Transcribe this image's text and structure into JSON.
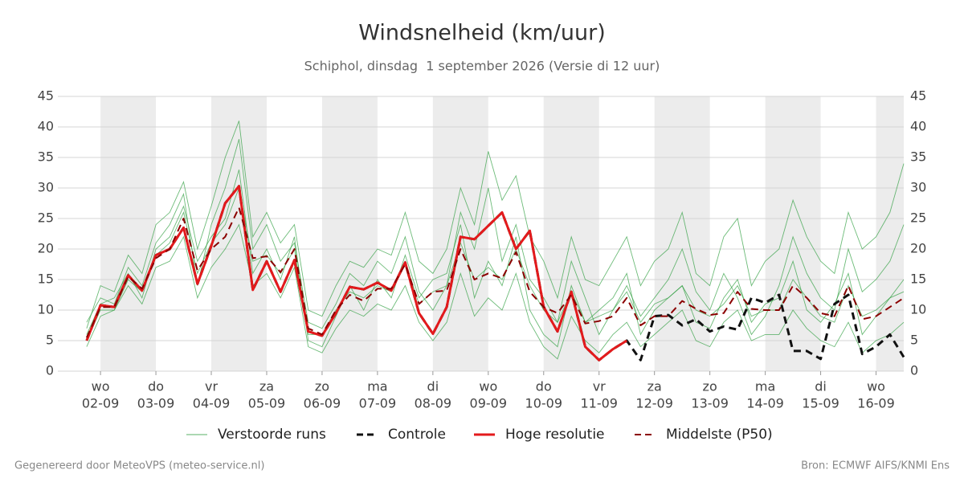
{
  "chart_data": {
    "type": "line",
    "title": "Windsnelheid (km/uur)",
    "subtitle": "Schiphol, dinsdag  1 september 2026 (Versie di 12 uur)",
    "footer_left": "Gegenereerd door MeteoVPS (meteo-service.nl)",
    "footer_right": "Bron: ECMWF AIFS/KNMI Ens",
    "x": [
      -0.25,
      0,
      0.25,
      0.5,
      0.75,
      1,
      1.25,
      1.5,
      1.75,
      2,
      2.25,
      2.5,
      2.75,
      3,
      3.25,
      3.5,
      3.75,
      4,
      4.25,
      4.5,
      4.75,
      5,
      5.25,
      5.5,
      5.75,
      6,
      6.25,
      6.5,
      6.75,
      7,
      7.25,
      7.5,
      7.75,
      8,
      8.25,
      8.5,
      8.75,
      9,
      9.25,
      9.5,
      9.75,
      10,
      10.25,
      10.5,
      10.75,
      11,
      11.25,
      11.5,
      11.75,
      12,
      12.25,
      12.5,
      12.75,
      13,
      13.25,
      13.5,
      13.75,
      14,
      14.25,
      14.5
    ],
    "xlim": [
      -0.77,
      14.5
    ],
    "xticks": [
      {
        "value": 0,
        "label": "02-09",
        "weekday": "wo"
      },
      {
        "value": 1,
        "label": "03-09",
        "weekday": "do"
      },
      {
        "value": 2,
        "label": "04-09",
        "weekday": "vr"
      },
      {
        "value": 3,
        "label": "05-09",
        "weekday": "za"
      },
      {
        "value": 4,
        "label": "06-09",
        "weekday": "zo"
      },
      {
        "value": 5,
        "label": "07-09",
        "weekday": "ma"
      },
      {
        "value": 6,
        "label": "08-09",
        "weekday": "di"
      },
      {
        "value": 7,
        "label": "09-09",
        "weekday": "wo"
      },
      {
        "value": 8,
        "label": "10-09",
        "weekday": "do"
      },
      {
        "value": 9,
        "label": "11-09",
        "weekday": "vr"
      },
      {
        "value": 10,
        "label": "12-09",
        "weekday": "za"
      },
      {
        "value": 11,
        "label": "13-09",
        "weekday": "zo"
      },
      {
        "value": 12,
        "label": "14-09",
        "weekday": "ma"
      },
      {
        "value": 13,
        "label": "15-09",
        "weekday": "di"
      },
      {
        "value": 14,
        "label": "16-09",
        "weekday": "wo"
      }
    ],
    "ylim": [
      0,
      45
    ],
    "yticks": [
      0,
      5,
      10,
      15,
      20,
      25,
      30,
      35,
      40,
      45
    ],
    "y2lim": [
      0,
      45
    ],
    "y2ticks": [
      0,
      5,
      10,
      15,
      20,
      25,
      30,
      35,
      40,
      45
    ],
    "grid": true,
    "alternate_day_shading": true,
    "legend": "bottom",
    "series": [
      {
        "name": "Verstoorde runs",
        "color": "#2e9e3e",
        "runs": [
          [
            6,
            11,
            12,
            16,
            12,
            20,
            22,
            27,
            18,
            22,
            25,
            33,
            16,
            20,
            15,
            22,
            5,
            4,
            9,
            14,
            10,
            15,
            12,
            19,
            12,
            15,
            16,
            24,
            12,
            18,
            14,
            22,
            10,
            6,
            4,
            14,
            8,
            10,
            12,
            16,
            6,
            10,
            12,
            14,
            8,
            7,
            12,
            15,
            8,
            11,
            12,
            18,
            10,
            8,
            11,
            16,
            6,
            9,
            12,
            15
          ],
          [
            8,
            12,
            11,
            17,
            14,
            21,
            24,
            29,
            14,
            24,
            30,
            38,
            20,
            24,
            18,
            21,
            8,
            7,
            11,
            16,
            14,
            18,
            16,
            22,
            13,
            10,
            14,
            26,
            20,
            30,
            18,
            24,
            15,
            12,
            8,
            18,
            12,
            6,
            10,
            14,
            9,
            12,
            15,
            20,
            13,
            10,
            16,
            12,
            6,
            9,
            14,
            22,
            16,
            12,
            10,
            20,
            13,
            15,
            18,
            24
          ],
          [
            4,
            9,
            10,
            14,
            11,
            17,
            18,
            22,
            12,
            17,
            20,
            24,
            14,
            16,
            12,
            17,
            4,
            3,
            7,
            10,
            9,
            11,
            10,
            14,
            8,
            5,
            8,
            16,
            9,
            12,
            10,
            16,
            8,
            4,
            2,
            9,
            5,
            3,
            6,
            8,
            4,
            6,
            8,
            10,
            5,
            4,
            8,
            10,
            5,
            6,
            6,
            10,
            7,
            5,
            4,
            8,
            3,
            5,
            6,
            8
          ],
          [
            7,
            14,
            13,
            19,
            16,
            24,
            26,
            31,
            20,
            27,
            35,
            41,
            22,
            26,
            21,
            24,
            10,
            9,
            14,
            18,
            17,
            20,
            19,
            26,
            18,
            16,
            20,
            30,
            24,
            36,
            28,
            32,
            22,
            18,
            12,
            22,
            15,
            14,
            18,
            22,
            14,
            18,
            20,
            26,
            16,
            14,
            22,
            25,
            14,
            18,
            20,
            28,
            22,
            18,
            16,
            26,
            20,
            22,
            26,
            34
          ],
          [
            5,
            10,
            10,
            15,
            13,
            19,
            21,
            26,
            16,
            21,
            24,
            30,
            18,
            19,
            16,
            20,
            6,
            6,
            10,
            13,
            12,
            14,
            13,
            18,
            11,
            13,
            14,
            21,
            15,
            17,
            15,
            20,
            14,
            10,
            8,
            13,
            8,
            9,
            10,
            13,
            8,
            11,
            12,
            14,
            10,
            9,
            11,
            14,
            9,
            10,
            10,
            15,
            12,
            9,
            8,
            14,
            9,
            10,
            12,
            13
          ]
        ]
      },
      {
        "name": "Controle",
        "color": "#111111",
        "dashed": true,
        "width": 3,
        "values": [
          5,
          10.8,
          10.5,
          15.7,
          13.2,
          19,
          20,
          23.5,
          14.3,
          20.5,
          27.5,
          30.3,
          13.3,
          18,
          13,
          18.2,
          6.5,
          5.8,
          9.5,
          13.8,
          13.4,
          14.5,
          13.2,
          17.8,
          9.5,
          6.1,
          10.5,
          22,
          21.6,
          23.8,
          26,
          20,
          23,
          10.5,
          6.5,
          13,
          4,
          1.8,
          3.6,
          5,
          1.8,
          9,
          9.2,
          7.5,
          8.5,
          6.5,
          7.3,
          6.8,
          12,
          11.2,
          12.5,
          3.3,
          3.3,
          2,
          11,
          12.5,
          2.8,
          4,
          6,
          2.3
        ]
      },
      {
        "name": "Hoge resolutie",
        "color": "#e31a1c",
        "width": 3,
        "values": [
          5,
          10.8,
          10.5,
          15.7,
          13.2,
          19,
          20,
          23.5,
          14.3,
          20.5,
          27.5,
          30.3,
          13.3,
          18,
          13,
          18.2,
          6.5,
          5.8,
          9.5,
          13.8,
          13.4,
          14.5,
          13.2,
          17.8,
          9.5,
          6.1,
          10.5,
          22,
          21.6,
          23.8,
          26,
          20,
          23,
          10.5,
          6.5,
          13,
          4,
          1.8,
          3.6,
          5,
          null,
          null,
          null,
          null,
          null,
          null,
          null,
          null,
          null,
          null,
          null,
          null,
          null,
          null,
          null,
          null,
          null,
          null,
          null,
          null
        ]
      },
      {
        "name": "Middelste (P50)",
        "color": "#8b0000",
        "dashed": true,
        "width": 2,
        "values": [
          5.5,
          10.5,
          10.5,
          15.5,
          13.5,
          18.5,
          20,
          25,
          16.5,
          20,
          22,
          26.8,
          18.5,
          18.8,
          16.2,
          20,
          7,
          6,
          10,
          12.5,
          11.5,
          13.5,
          13.5,
          17.5,
          11,
          13,
          13.2,
          20,
          15,
          16,
          15.2,
          19.5,
          13,
          10.5,
          9.5,
          12.5,
          7.8,
          8.2,
          9,
          12,
          7.5,
          9,
          9,
          11.5,
          10.2,
          9.2,
          9.5,
          13,
          10.2,
          10,
          10,
          14,
          12,
          9.5,
          9,
          14,
          8.5,
          9,
          10.5,
          12
        ]
      }
    ]
  }
}
